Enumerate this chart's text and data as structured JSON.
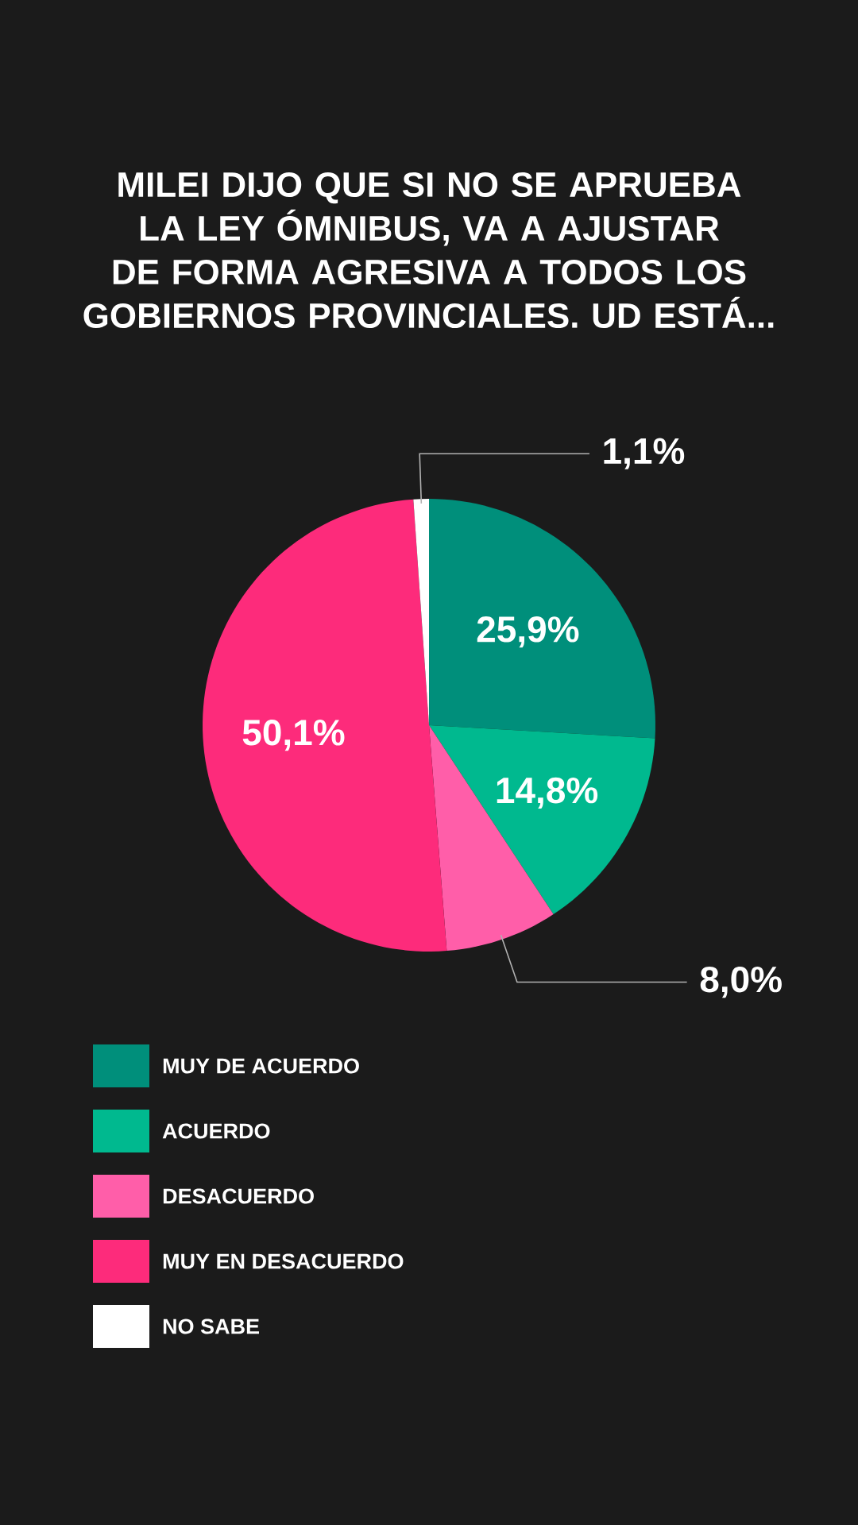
{
  "chart_data": {
    "type": "pie",
    "title": "MILEI DIJO QUE SI NO SE APRUEBA LA LEY ÓMNIBUS, VA A AJUSTAR DE FORMA AGRESIVA A TODOS LOS GOBIERNOS PROVINCIALES. UD ESTÁ...",
    "categories": [
      "MUY DE ACUERDO",
      "ACUERDO",
      "DESACUERDO",
      "MUY EN DESACUERDO",
      "NO SABE"
    ],
    "values": [
      25.9,
      14.8,
      8.0,
      50.1,
      1.1
    ],
    "value_labels": [
      "25,9%",
      "14,8%",
      "8,0%",
      "50,1%",
      "1,1%"
    ],
    "colors": [
      "#008f7b",
      "#00b98f",
      "#ff5ea9",
      "#fd2b7b",
      "#ffffff"
    ],
    "legend": "bottom left"
  }
}
